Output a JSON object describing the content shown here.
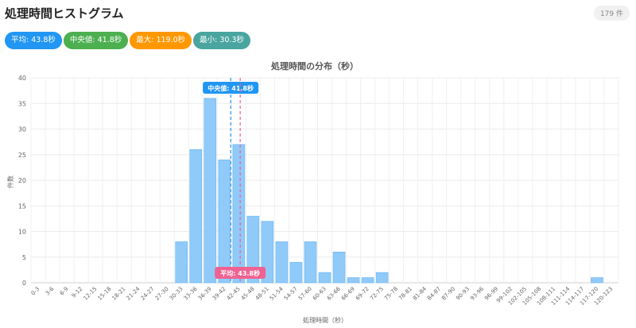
{
  "header": {
    "title": "処理時間ヒストグラム",
    "count": "179 件"
  },
  "stats": [
    {
      "label": "平均: 43.8秒",
      "color": "#2196f3"
    },
    {
      "label": "中央値: 41.8秒",
      "color": "#4caf50"
    },
    {
      "label": "最大: 119.0秒",
      "color": "#ff9800"
    },
    {
      "label": "最小: 30.3秒",
      "color": "#4aa5a0"
    }
  ],
  "chart_data": {
    "type": "bar",
    "title": "処理時間の分布（秒）",
    "xlabel": "処理時間（秒）",
    "ylabel": "件数",
    "ylim": [
      0,
      40
    ],
    "yticks": [
      0,
      5,
      10,
      15,
      20,
      25,
      30,
      35,
      40
    ],
    "grid": true,
    "bar_color": "#90caf9",
    "categories": [
      "0-3",
      "3-6",
      "6-9",
      "9-12",
      "12-15",
      "15-18",
      "18-21",
      "21-24",
      "24-27",
      "27-30",
      "30-33",
      "33-36",
      "36-39",
      "39-42",
      "42-45",
      "45-48",
      "48-51",
      "51-54",
      "54-57",
      "57-60",
      "60-63",
      "63-66",
      "66-69",
      "69-72",
      "72-75",
      "75-78",
      "78-81",
      "81-84",
      "84-87",
      "87-90",
      "90-93",
      "93-96",
      "96-99",
      "99-102",
      "102-105",
      "105-108",
      "108-111",
      "111-114",
      "114-117",
      "117-120",
      "120-123"
    ],
    "values": [
      0,
      0,
      0,
      0,
      0,
      0,
      0,
      0,
      0,
      0,
      8,
      26,
      36,
      24,
      27,
      13,
      12,
      8,
      4,
      8,
      2,
      6,
      1,
      1,
      2,
      0,
      0,
      0,
      0,
      0,
      0,
      0,
      0,
      0,
      0,
      0,
      0,
      0,
      0,
      1,
      0
    ],
    "annotations": [
      {
        "label": "中央値: 41.8秒",
        "value": 41.8,
        "color": "#2196f3",
        "label_position": "top"
      },
      {
        "label": "平均: 43.8秒",
        "value": 43.8,
        "color": "#f06292",
        "label_position": "bottom"
      }
    ]
  }
}
